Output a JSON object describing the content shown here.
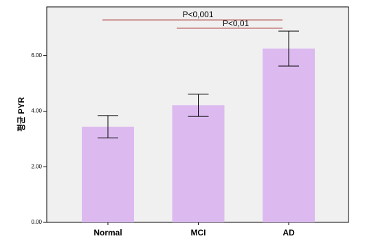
{
  "chart_data": {
    "type": "bar",
    "y_label": "평균 PYR",
    "categories": [
      "Normal",
      "MCI",
      "AD"
    ],
    "values": [
      3.44,
      4.21,
      6.25
    ],
    "errors": [
      0.4,
      0.4,
      0.63
    ],
    "color": "#dcbaf0",
    "ylim": [
      0,
      7.75
    ],
    "yticks": [
      {
        "value": 0,
        "label": "0.00"
      },
      {
        "value": 2,
        "label": "2.00"
      },
      {
        "value": 4,
        "label": "4.00"
      },
      {
        "value": 6,
        "label": "6.00"
      }
    ],
    "annotations": [
      "P<0,001",
      "P<0,01"
    ]
  }
}
